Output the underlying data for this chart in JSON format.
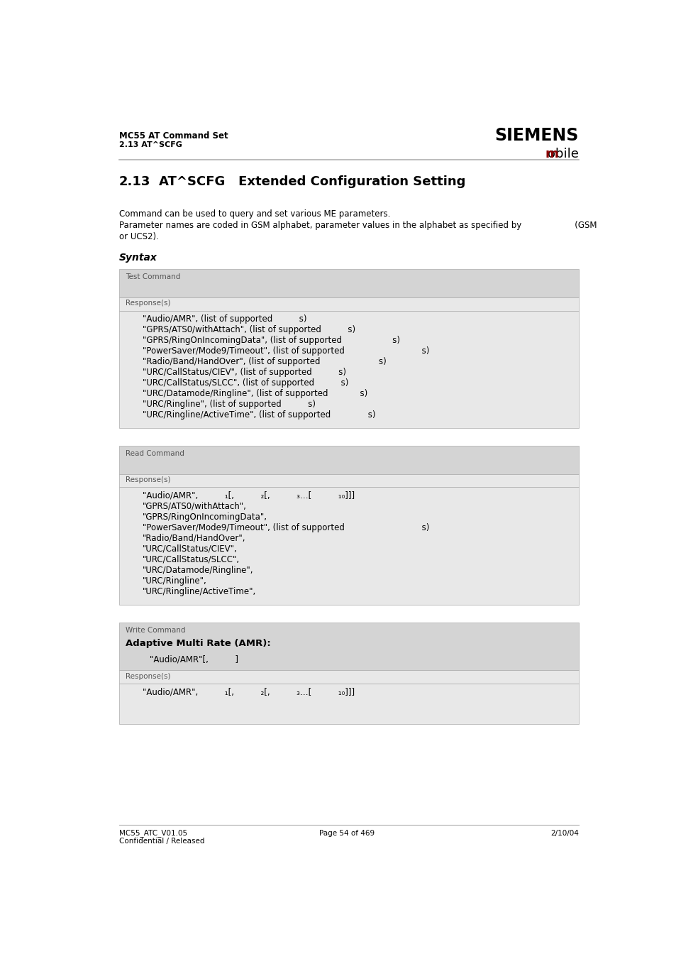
{
  "page_width": 9.54,
  "page_height": 13.51,
  "bg_color": "#ffffff",
  "header_left_line1": "MC55 AT Command Set",
  "header_left_line2": "2.13 AT^SCFG",
  "header_right_top": "SIEMENS",
  "header_right_bot_m": "m",
  "header_right_bot_rest": "obile",
  "section_num": "2.13",
  "section_title": "AT^SCFG   Extended Configuration Setting",
  "desc_line1": "Command can be used to query and set various ME parameters.",
  "desc_line2": "Parameter names are coded in GSM alphabet, parameter values in the alphabet as specified by                    (GSM",
  "desc_line3": "or UCS2).",
  "syntax_label": "Syntax",
  "box1_label": "Test Command",
  "box1_response_label": "Response(s)",
  "box1_lines": [
    "\"Audio/AMR\", (list of supported          s)",
    "\"GPRS/ATS0/withAttach\", (list of supported          s)",
    "\"GPRS/RingOnIncomingData\", (list of supported                   s)",
    "\"PowerSaver/Mode9/Timeout\", (list of supported                             s)",
    "\"Radio/Band/HandOver\", (list of supported                      s)",
    "\"URC/CallStatus/CIEV\", (list of supported          s)",
    "\"URC/CallStatus/SLCC\", (list of supported          s)",
    "\"URC/Datamode/Ringline\", (list of supported            s)",
    "\"URC/Ringline\", (list of supported          s)",
    "\"URC/Ringline/ActiveTime\", (list of supported              s)"
  ],
  "box2_label": "Read Command",
  "box2_response_label": "Response(s)",
  "box2_lines": [
    "\"Audio/AMR\",          ₁[,          ₂[,          ₃…[          ₁₀]]]",
    "\"GPRS/ATS0/withAttach\",",
    "\"GPRS/RingOnIncomingData\",",
    "\"PowerSaver/Mode9/Timeout\", (list of supported                             s)",
    "\"Radio/Band/HandOver\",",
    "\"URC/CallStatus/CIEV\",",
    "\"URC/CallStatus/SLCC\",",
    "\"URC/Datamode/Ringline\",",
    "\"URC/Ringline\",",
    "\"URC/Ringline/ActiveTime\","
  ],
  "box3_label": "Write Command",
  "box3_write_title": "Adaptive Multi Rate (AMR):",
  "box3_cmd_line": "\"Audio/AMR\"[,          ]",
  "box3_response_label": "Response(s)",
  "box3_lines": [
    "\"Audio/AMR\",          ₁[,          ₂[,          ₃…[          ₁₀]]]"
  ],
  "footer_left1": "MC55_ATC_V01.05",
  "footer_center": "Page 54 of 469",
  "footer_right": "2/10/04",
  "footer_left2": "Confidential / Released",
  "box_bg": "#d4d4d4",
  "box_response_bg": "#e8e8e8",
  "mobile_m_color": "#8b0000"
}
